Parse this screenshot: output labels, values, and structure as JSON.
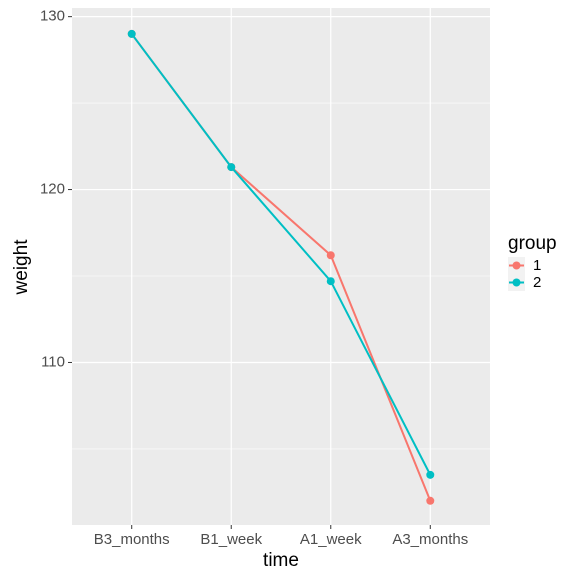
{
  "chart_data": {
    "type": "line",
    "x_label": "time",
    "y_label": "weight",
    "categories": [
      "B3_months",
      "B1_week",
      "A1_week",
      "A3_months"
    ],
    "series": [
      {
        "name": "1",
        "color": "#F8766D",
        "values": [
          129.0,
          121.3,
          116.2,
          102.0
        ]
      },
      {
        "name": "2",
        "color": "#00BFC4",
        "values": [
          129.0,
          121.3,
          114.7,
          103.5
        ]
      }
    ],
    "ylim": [
      100.6,
      130.5
    ],
    "yticks": [
      110,
      120,
      130
    ],
    "grid": true,
    "legend_title": "group",
    "legend_position": "right"
  }
}
